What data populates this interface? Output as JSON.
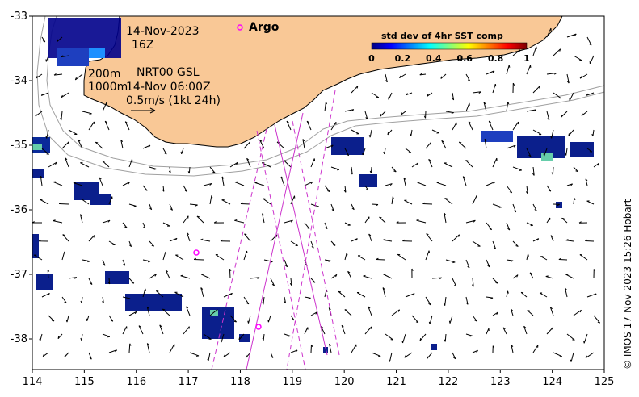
{
  "map": {
    "date": "14-Nov-2023",
    "hour": "16Z",
    "argo_label": "Argo",
    "contour_200": "200m",
    "contour_1000": "1000m",
    "product": "NRT00 GSL",
    "product_time": "14-Nov 06:00Z",
    "vector_scale": "0.5m/s (1kt 24h)",
    "colorbar_title": "std dev of 4hr SST comp",
    "colorbar_ticks": [
      "0",
      "0.2",
      "0.4",
      "0.6",
      "0.8",
      "1"
    ],
    "copyright": "© IMOS 17-Nov-2023 15:26 Hobart",
    "x_ticks": [
      "114",
      "115",
      "116",
      "117",
      "118",
      "119",
      "120",
      "121",
      "122",
      "123",
      "124",
      "125"
    ],
    "y_ticks": [
      "-33",
      "-34",
      "-35",
      "-36",
      "-37",
      "-38"
    ],
    "colors": {
      "land": "#f9c896",
      "argo": "#ff00ff",
      "track": "#cc33cc",
      "contour": "#a0a0a0",
      "sst_low": "#00008b",
      "sst_mid": "#1e90ff",
      "sst_high": "#66cdaa"
    }
  }
}
